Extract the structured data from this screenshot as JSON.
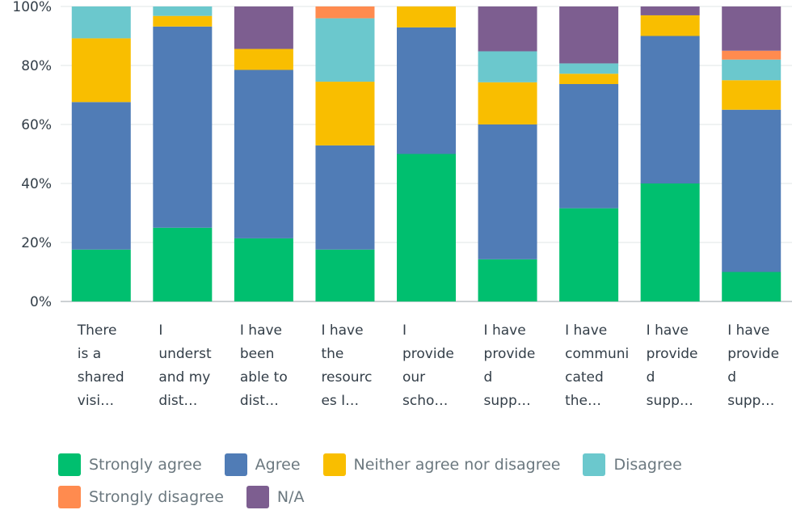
{
  "chart_data": {
    "type": "bar",
    "stacked": true,
    "percent": true,
    "ylim": [
      0,
      100
    ],
    "y_ticks": [
      "0%",
      "20%",
      "40%",
      "60%",
      "80%",
      "100%"
    ],
    "grid": true,
    "legend_position": "bottom",
    "categories": [
      [
        "There",
        "is a",
        "shared",
        "visi…"
      ],
      [
        "I",
        "underst",
        "and my",
        "dist…"
      ],
      [
        "I have",
        "been",
        "able to",
        "dist…"
      ],
      [
        "I have",
        "the",
        "resourc",
        "es I…"
      ],
      [
        "I",
        "provide",
        "our",
        "scho…"
      ],
      [
        "I have",
        "provide",
        "d",
        "supp…"
      ],
      [
        "I have",
        "communi",
        "cated",
        "the…"
      ],
      [
        "I have",
        "provide",
        "d",
        "supp…"
      ],
      [
        "I have",
        "provide",
        "d",
        "supp…"
      ]
    ],
    "series": [
      {
        "name": "Strongly agree",
        "color": "#00bf6f",
        "values": [
          17.6,
          25,
          21.4,
          17.6,
          50,
          14.3,
          31.6,
          40,
          10
        ]
      },
      {
        "name": "Agree",
        "color": "#507cb6",
        "values": [
          50,
          68.2,
          57.1,
          35.3,
          42.9,
          45.7,
          42.1,
          50,
          55
        ]
      },
      {
        "name": "Neither agree nor disagree",
        "color": "#f9be00",
        "values": [
          21.6,
          3.6,
          7.1,
          21.6,
          7.1,
          14.3,
          3.5,
          7,
          10
        ]
      },
      {
        "name": "Disagree",
        "color": "#6bc8cd",
        "values": [
          10.8,
          3.2,
          0,
          21.5,
          0,
          10.5,
          3.5,
          0,
          7
        ]
      },
      {
        "name": "Strongly disagree",
        "color": "#ff8b4f",
        "values": [
          0,
          0,
          0,
          4,
          0,
          0,
          0,
          0,
          3
        ]
      },
      {
        "name": "N/A",
        "color": "#7d5e90",
        "values": [
          0,
          0,
          14.4,
          0,
          0,
          15.2,
          19.3,
          3,
          15
        ]
      }
    ]
  }
}
